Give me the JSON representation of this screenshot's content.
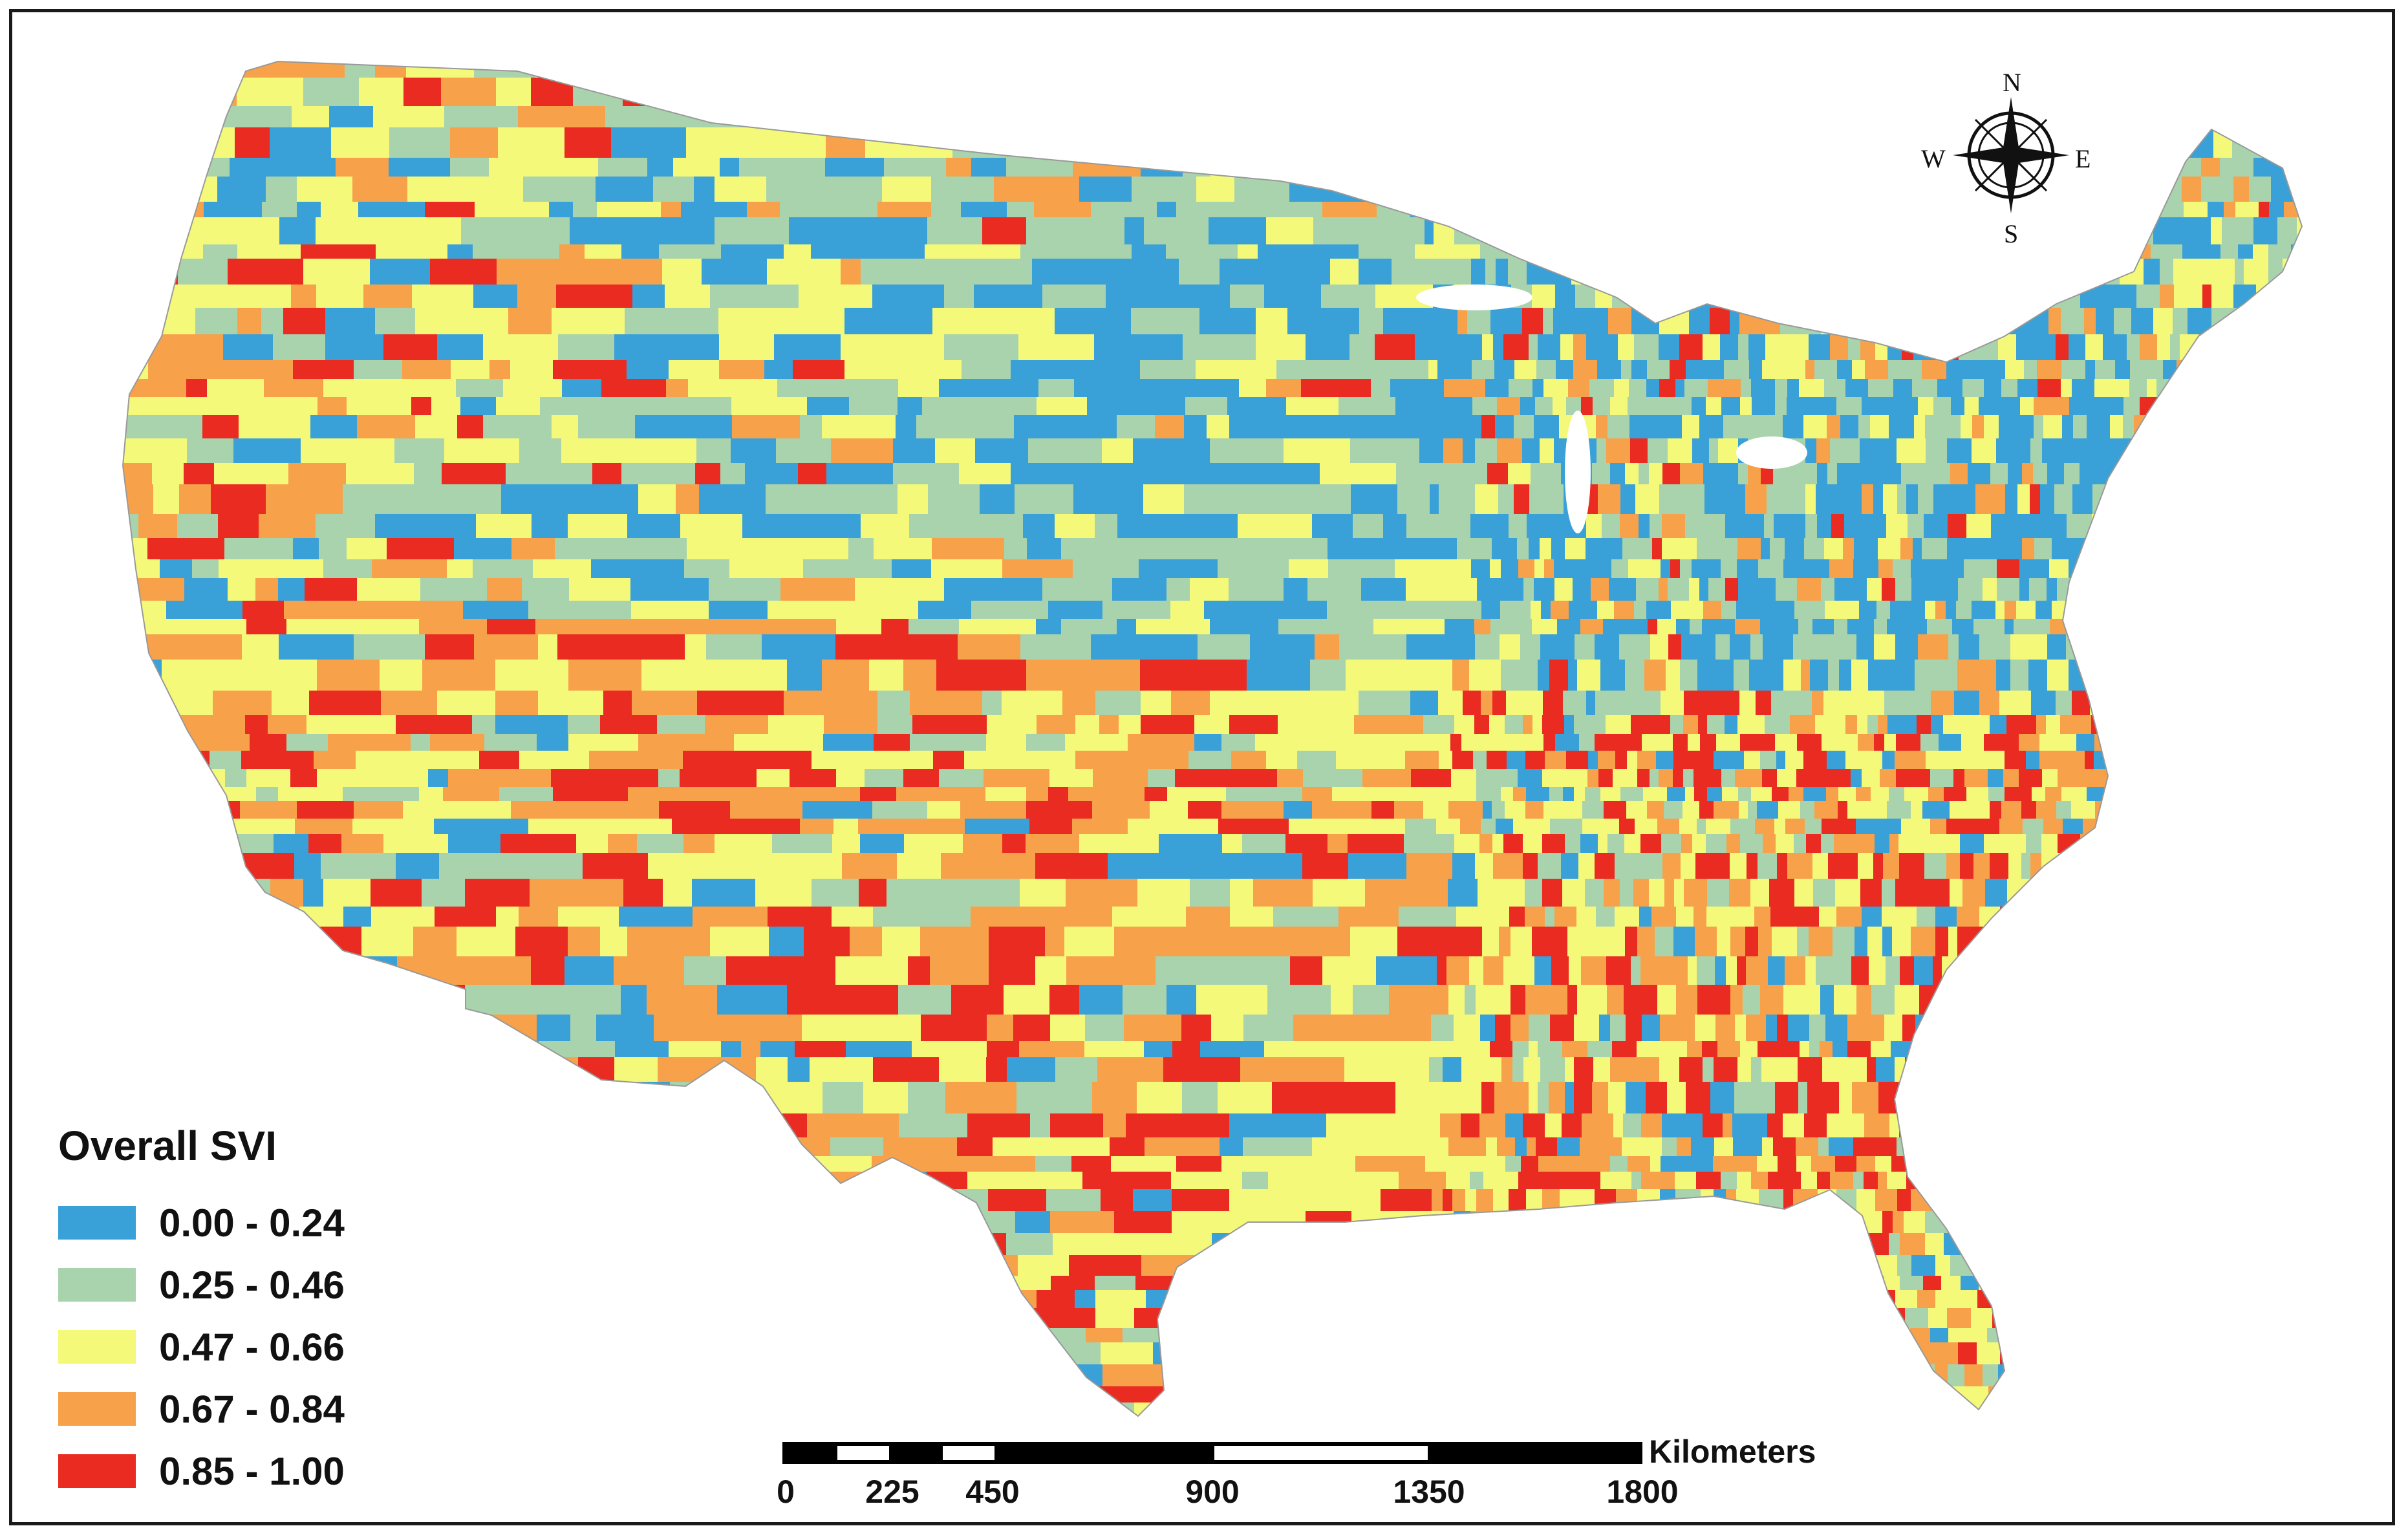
{
  "legend": {
    "title": "Overall SVI",
    "classes": [
      {
        "label": "0.00 - 0.24",
        "color": "#3aa0d8"
      },
      {
        "label": "0.25 - 0.46",
        "color": "#a9d3ad"
      },
      {
        "label": "0.47 - 0.66",
        "color": "#f5f97a"
      },
      {
        "label": "0.67 - 0.84",
        "color": "#f7a24a"
      },
      {
        "label": "0.85 - 1.00",
        "color": "#ea2b22"
      }
    ]
  },
  "scale_bar": {
    "unit": "Kilometers",
    "ticks": [
      "0",
      "225",
      "450",
      "900",
      "1350",
      "1800"
    ]
  },
  "compass": {
    "north": "N",
    "south": "S",
    "east": "E",
    "west": "W"
  },
  "colors": {
    "frame": "#1a1a1a",
    "background": "#ffffff"
  }
}
